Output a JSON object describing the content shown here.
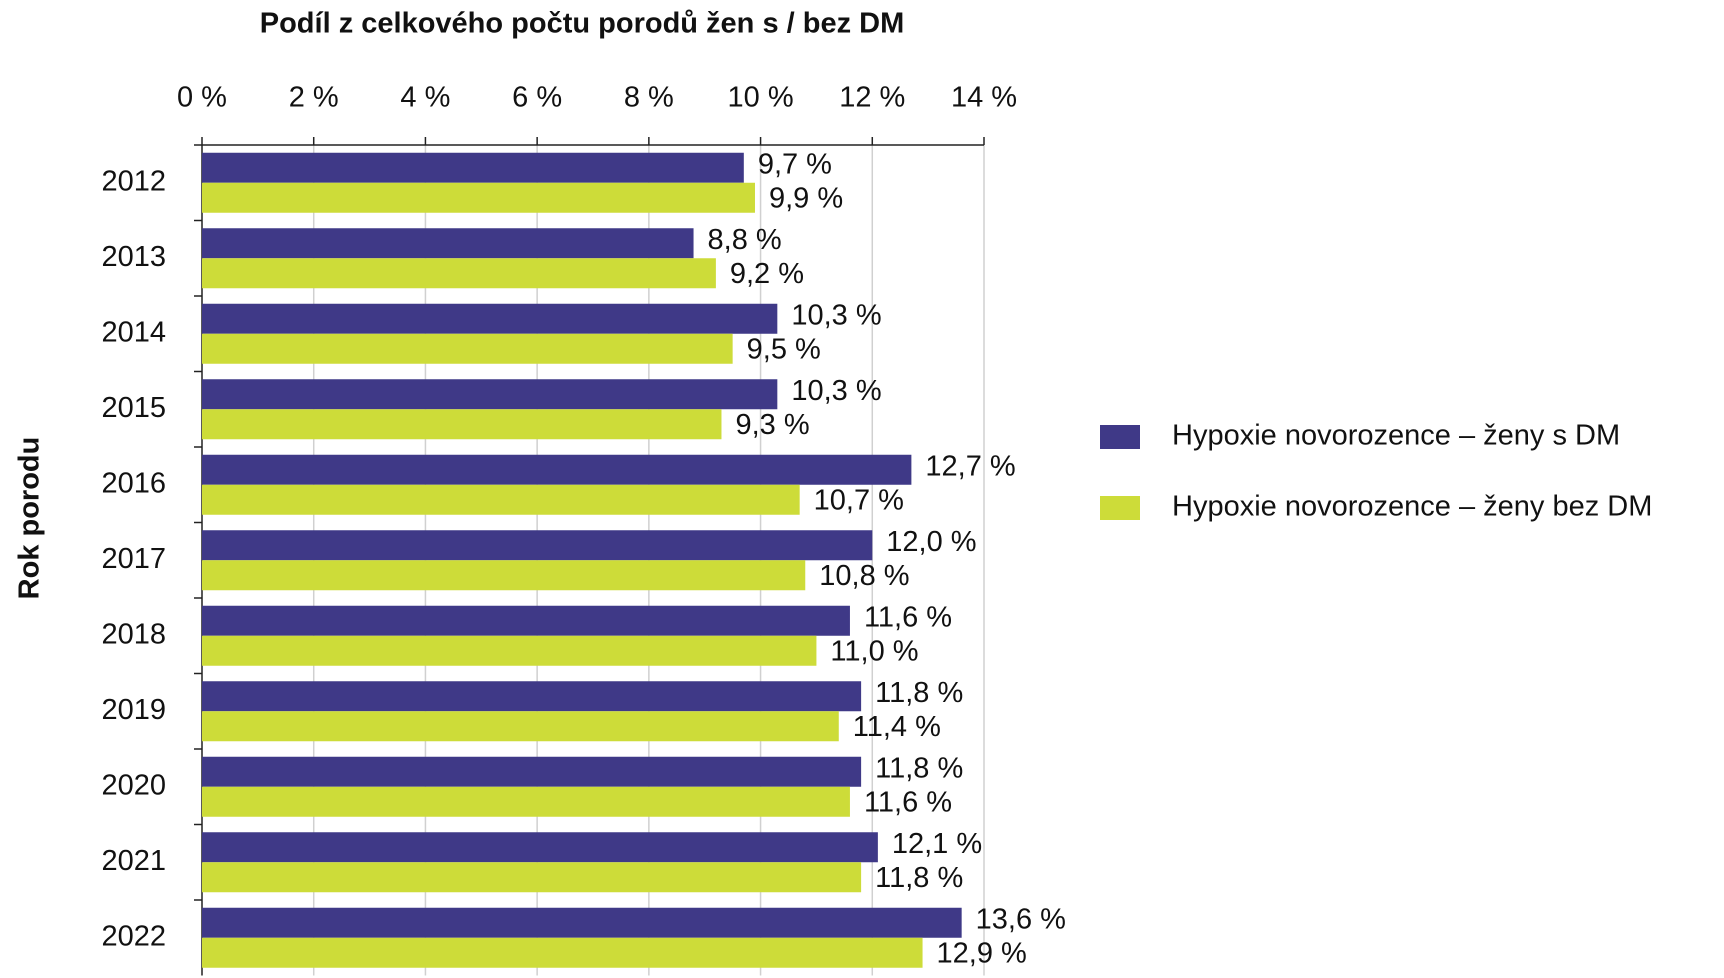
{
  "chart_data": {
    "type": "hbar",
    "title": "Podíl z celkového počtu porodů žen s / bez DM",
    "y_label": "Rok porodu",
    "categories": [
      "2012",
      "2013",
      "2014",
      "2015",
      "2016",
      "2017",
      "2018",
      "2019",
      "2020",
      "2021",
      "2022"
    ],
    "series": [
      {
        "name": "Hypoxie novorozence – ženy s DM",
        "color": "#3f3987",
        "values": [
          9.7,
          8.8,
          10.3,
          10.3,
          12.7,
          12.0,
          11.6,
          11.8,
          11.8,
          12.1,
          13.6
        ],
        "value_labels": [
          "9,7 %",
          "8,8 %",
          "10,3 %",
          "10,3 %",
          "12,7 %",
          "12,0 %",
          "11,6 %",
          "11,8 %",
          "11,8 %",
          "12,1 %",
          "13,6 %"
        ]
      },
      {
        "name": "Hypoxie novorozence – ženy bez DM",
        "color": "#cddc39",
        "values": [
          9.9,
          9.2,
          9.5,
          9.3,
          10.7,
          10.8,
          11.0,
          11.4,
          11.6,
          11.8,
          12.9
        ],
        "value_labels": [
          "9,9 %",
          "9,2 %",
          "9,5 %",
          "9,3 %",
          "10,7 %",
          "10,8 %",
          "11,0 %",
          "11,4 %",
          "11,6 %",
          "11,8 %",
          "12,9 %"
        ]
      }
    ],
    "xlim": [
      0,
      14
    ],
    "xticks": [
      {
        "value": 0,
        "label": "0 %"
      },
      {
        "value": 2,
        "label": "2 %"
      },
      {
        "value": 4,
        "label": "4 %"
      },
      {
        "value": 6,
        "label": "6 %"
      },
      {
        "value": 8,
        "label": "8 %"
      },
      {
        "value": 10,
        "label": "10 %"
      },
      {
        "value": 12,
        "label": "12 %"
      },
      {
        "value": 14,
        "label": "14 %"
      }
    ],
    "grid": true,
    "legend": "right"
  }
}
